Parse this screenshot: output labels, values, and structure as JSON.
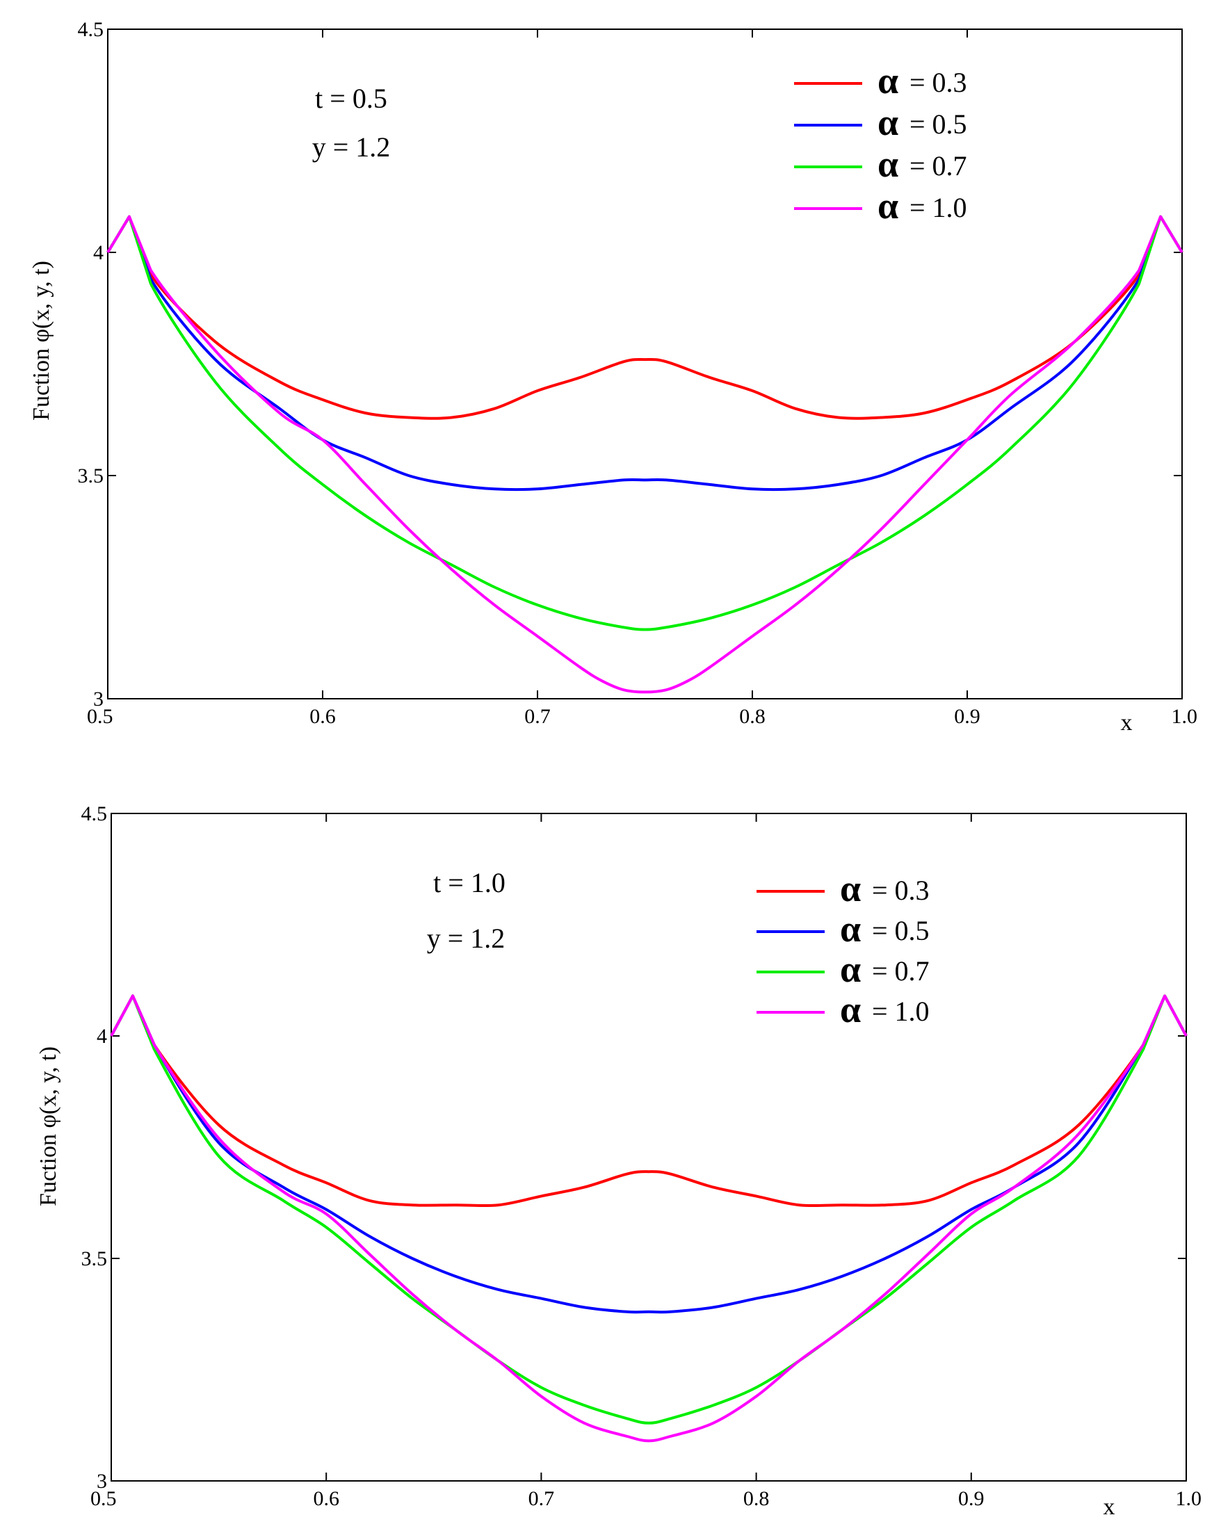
{
  "chart_data": [
    {
      "type": "line",
      "ylabel": "Fuction φ(x, y, t)",
      "xlabel": "x",
      "xlim": [
        0.5,
        1.0
      ],
      "ylim": [
        3,
        4.5
      ],
      "xticks": [
        "0.5",
        "0.6",
        "0.7",
        "0.8",
        "0.9",
        "1.0"
      ],
      "yticks": [
        "3",
        "3.5",
        "4",
        "4.5"
      ],
      "annotations": [
        "t = 0.5",
        "y = 1.2"
      ],
      "legend_position": "top-right",
      "series": [
        {
          "name": "α = 0.3",
          "symbol": "α",
          "label": "= 0.3",
          "color": "#ff0000",
          "x": [
            0.5,
            0.51,
            0.52,
            0.55,
            0.58,
            0.6,
            0.62,
            0.64,
            0.66,
            0.68,
            0.7,
            0.72,
            0.74,
            0.75,
            0.76,
            0.78,
            0.8,
            0.82,
            0.84,
            0.86,
            0.88,
            0.9,
            0.92,
            0.95,
            0.98,
            0.99,
            1.0
          ],
          "y": [
            4.0,
            4.08,
            3.95,
            3.8,
            3.71,
            3.67,
            3.64,
            3.63,
            3.63,
            3.65,
            3.69,
            3.72,
            3.755,
            3.76,
            3.755,
            3.72,
            3.69,
            3.65,
            3.63,
            3.63,
            3.64,
            3.67,
            3.71,
            3.8,
            3.95,
            4.08,
            4.0
          ]
        },
        {
          "name": "α = 0.5",
          "symbol": "α",
          "label": "= 0.5",
          "color": "#0000ff",
          "x": [
            0.5,
            0.51,
            0.52,
            0.55,
            0.58,
            0.6,
            0.62,
            0.64,
            0.66,
            0.68,
            0.7,
            0.72,
            0.74,
            0.75,
            0.76,
            0.78,
            0.8,
            0.82,
            0.84,
            0.86,
            0.88,
            0.9,
            0.92,
            0.95,
            0.98,
            0.99,
            1.0
          ],
          "y": [
            4.0,
            4.08,
            3.94,
            3.76,
            3.65,
            3.58,
            3.54,
            3.5,
            3.48,
            3.47,
            3.47,
            3.48,
            3.49,
            3.49,
            3.49,
            3.48,
            3.47,
            3.47,
            3.48,
            3.5,
            3.54,
            3.58,
            3.65,
            3.76,
            3.94,
            4.08,
            4.0
          ]
        },
        {
          "name": "α = 0.7",
          "symbol": "α",
          "label": "= 0.7",
          "color": "#00ee00",
          "x": [
            0.5,
            0.51,
            0.52,
            0.55,
            0.58,
            0.6,
            0.62,
            0.64,
            0.66,
            0.68,
            0.7,
            0.72,
            0.74,
            0.75,
            0.76,
            0.78,
            0.8,
            0.82,
            0.84,
            0.86,
            0.88,
            0.9,
            0.92,
            0.95,
            0.98,
            0.99,
            1.0
          ],
          "y": [
            4.0,
            4.08,
            3.93,
            3.71,
            3.56,
            3.48,
            3.41,
            3.35,
            3.3,
            3.25,
            3.21,
            3.18,
            3.16,
            3.155,
            3.16,
            3.18,
            3.21,
            3.25,
            3.3,
            3.35,
            3.41,
            3.48,
            3.56,
            3.71,
            3.93,
            4.08,
            4.0
          ]
        },
        {
          "name": "α = 1.0",
          "symbol": "α",
          "label": "= 1.0",
          "color": "#ff00ff",
          "x": [
            0.5,
            0.51,
            0.52,
            0.55,
            0.58,
            0.6,
            0.62,
            0.64,
            0.66,
            0.68,
            0.7,
            0.72,
            0.73,
            0.74,
            0.75,
            0.76,
            0.77,
            0.78,
            0.8,
            0.82,
            0.84,
            0.86,
            0.88,
            0.9,
            0.92,
            0.95,
            0.98,
            0.99,
            1.0
          ],
          "y": [
            4.0,
            4.08,
            3.96,
            3.78,
            3.64,
            3.58,
            3.48,
            3.38,
            3.29,
            3.21,
            3.14,
            3.07,
            3.04,
            3.02,
            3.015,
            3.02,
            3.04,
            3.07,
            3.14,
            3.21,
            3.29,
            3.38,
            3.48,
            3.58,
            3.68,
            3.8,
            3.96,
            4.08,
            4.0
          ]
        }
      ]
    },
    {
      "type": "line",
      "ylabel": "Fuction φ(x, y, t)",
      "xlabel": "x",
      "xlim": [
        0.5,
        1.0
      ],
      "ylim": [
        3,
        4.5
      ],
      "xticks": [
        "0.5",
        "0.6",
        "0.7",
        "0.8",
        "0.9",
        "1.0"
      ],
      "yticks": [
        "3",
        "3.5",
        "4",
        "4.5"
      ],
      "annotations": [
        "t = 1.0",
        "y = 1.2"
      ],
      "legend_position": "top-right",
      "series": [
        {
          "name": "α = 0.3",
          "symbol": "α",
          "label": "= 0.3",
          "color": "#ff0000",
          "x": [
            0.5,
            0.51,
            0.52,
            0.55,
            0.58,
            0.6,
            0.62,
            0.64,
            0.66,
            0.68,
            0.7,
            0.72,
            0.74,
            0.75,
            0.76,
            0.78,
            0.8,
            0.82,
            0.84,
            0.86,
            0.88,
            0.9,
            0.92,
            0.95,
            0.98,
            0.99,
            1.0
          ],
          "y": [
            4.0,
            4.09,
            3.98,
            3.8,
            3.71,
            3.67,
            3.63,
            3.62,
            3.62,
            3.62,
            3.64,
            3.66,
            3.69,
            3.695,
            3.69,
            3.66,
            3.64,
            3.62,
            3.62,
            3.62,
            3.63,
            3.67,
            3.71,
            3.8,
            3.98,
            4.09,
            4.0
          ]
        },
        {
          "name": "α = 0.5",
          "symbol": "α",
          "label": "= 0.5",
          "color": "#0000ff",
          "x": [
            0.5,
            0.51,
            0.52,
            0.55,
            0.58,
            0.6,
            0.62,
            0.64,
            0.66,
            0.68,
            0.7,
            0.72,
            0.74,
            0.75,
            0.76,
            0.78,
            0.8,
            0.82,
            0.84,
            0.86,
            0.88,
            0.9,
            0.92,
            0.95,
            0.98,
            0.99,
            1.0
          ],
          "y": [
            4.0,
            4.09,
            3.98,
            3.76,
            3.66,
            3.61,
            3.55,
            3.5,
            3.46,
            3.43,
            3.41,
            3.39,
            3.38,
            3.38,
            3.38,
            3.39,
            3.41,
            3.43,
            3.46,
            3.5,
            3.55,
            3.61,
            3.66,
            3.76,
            3.98,
            4.09,
            4.0
          ]
        },
        {
          "name": "α = 0.7",
          "symbol": "α",
          "label": "= 0.7",
          "color": "#00ee00",
          "x": [
            0.5,
            0.51,
            0.52,
            0.55,
            0.58,
            0.6,
            0.62,
            0.64,
            0.66,
            0.68,
            0.7,
            0.72,
            0.74,
            0.75,
            0.76,
            0.78,
            0.8,
            0.82,
            0.84,
            0.86,
            0.88,
            0.9,
            0.92,
            0.95,
            0.98,
            0.99,
            1.0
          ],
          "y": [
            4.0,
            4.09,
            3.97,
            3.73,
            3.63,
            3.57,
            3.49,
            3.41,
            3.34,
            3.27,
            3.21,
            3.17,
            3.14,
            3.13,
            3.14,
            3.17,
            3.21,
            3.27,
            3.34,
            3.41,
            3.49,
            3.57,
            3.63,
            3.73,
            3.97,
            4.09,
            4.0
          ]
        },
        {
          "name": "α = 1.0",
          "symbol": "α",
          "label": "= 1.0",
          "color": "#ff00ff",
          "x": [
            0.5,
            0.51,
            0.52,
            0.55,
            0.58,
            0.6,
            0.62,
            0.64,
            0.66,
            0.68,
            0.7,
            0.72,
            0.74,
            0.75,
            0.76,
            0.78,
            0.8,
            0.82,
            0.84,
            0.86,
            0.88,
            0.9,
            0.92,
            0.95,
            0.98,
            0.99,
            1.0
          ],
          "y": [
            4.0,
            4.09,
            3.98,
            3.77,
            3.65,
            3.6,
            3.51,
            3.42,
            3.34,
            3.27,
            3.19,
            3.13,
            3.1,
            3.09,
            3.1,
            3.13,
            3.19,
            3.27,
            3.34,
            3.42,
            3.51,
            3.6,
            3.66,
            3.78,
            3.98,
            4.09,
            4.0
          ]
        }
      ]
    }
  ]
}
